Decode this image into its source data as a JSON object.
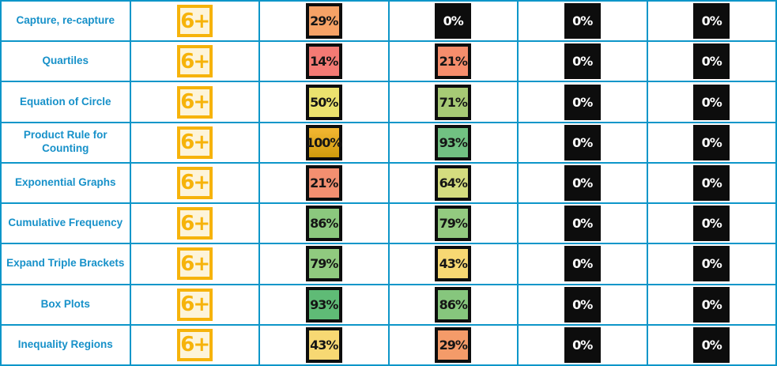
{
  "colors": {
    "grid_border": "#0d96c9",
    "topic_cell_bg": "#d7ebf5",
    "topic_text": "#1791c9",
    "grade_badge_border": "#f6b30b",
    "grade_badge_bg": "#fdf4da",
    "badge_border": "#0d0d0d",
    "zero_badge_bg": "#0d0d0d",
    "zero_badge_text": "#ffffff"
  },
  "rows": [
    {
      "topic": "Capture, re-capture",
      "grade": "6+",
      "scores": [
        {
          "value": "29%",
          "bg": "#f6a266",
          "fg": "#151515"
        },
        {
          "value": "0%",
          "bg": "#0d0d0d",
          "fg": "#ffffff"
        },
        {
          "value": "0%",
          "bg": "#0d0d0d",
          "fg": "#ffffff"
        },
        {
          "value": "0%",
          "bg": "#0d0d0d",
          "fg": "#ffffff"
        }
      ]
    },
    {
      "topic": "Quartiles",
      "grade": "6+",
      "scores": [
        {
          "value": "14%",
          "bg": "#f47a74",
          "fg": "#151515"
        },
        {
          "value": "21%",
          "bg": "#f68d6c",
          "fg": "#151515"
        },
        {
          "value": "0%",
          "bg": "#0d0d0d",
          "fg": "#ffffff"
        },
        {
          "value": "0%",
          "bg": "#0d0d0d",
          "fg": "#ffffff"
        }
      ]
    },
    {
      "topic": "Equation of Circle",
      "grade": "6+",
      "scores": [
        {
          "value": "50%",
          "bg": "#ebe26e",
          "fg": "#151515"
        },
        {
          "value": "71%",
          "bg": "#a7ca75",
          "fg": "#151515"
        },
        {
          "value": "0%",
          "bg": "#0d0d0d",
          "fg": "#ffffff"
        },
        {
          "value": "0%",
          "bg": "#0d0d0d",
          "fg": "#ffffff"
        }
      ]
    },
    {
      "topic": "Product Rule for Counting",
      "grade": "6+",
      "scores": [
        {
          "value": "100%",
          "bg": "linear-gradient(180deg,#f4b733,#cf9a0c)",
          "fg": "#151515"
        },
        {
          "value": "93%",
          "bg": "#71c182",
          "fg": "#151515"
        },
        {
          "value": "0%",
          "bg": "#0d0d0d",
          "fg": "#ffffff"
        },
        {
          "value": "0%",
          "bg": "#0d0d0d",
          "fg": "#ffffff"
        }
      ]
    },
    {
      "topic": "Exponential Graphs",
      "grade": "6+",
      "scores": [
        {
          "value": "21%",
          "bg": "#f38f70",
          "fg": "#151515"
        },
        {
          "value": "64%",
          "bg": "#d4dc7f",
          "fg": "#151515"
        },
        {
          "value": "0%",
          "bg": "#0d0d0d",
          "fg": "#ffffff"
        },
        {
          "value": "0%",
          "bg": "#0d0d0d",
          "fg": "#ffffff"
        }
      ]
    },
    {
      "topic": "Cumulative Frequency",
      "grade": "6+",
      "scores": [
        {
          "value": "86%",
          "bg": "#8bc87e",
          "fg": "#151515"
        },
        {
          "value": "79%",
          "bg": "#93ca80",
          "fg": "#151515"
        },
        {
          "value": "0%",
          "bg": "#0d0d0d",
          "fg": "#ffffff"
        },
        {
          "value": "0%",
          "bg": "#0d0d0d",
          "fg": "#ffffff"
        }
      ]
    },
    {
      "topic": "Expand Triple Brackets",
      "grade": "6+",
      "scores": [
        {
          "value": "79%",
          "bg": "#90ca7f",
          "fg": "#151515"
        },
        {
          "value": "43%",
          "bg": "#f7d873",
          "fg": "#151515"
        },
        {
          "value": "0%",
          "bg": "#0d0d0d",
          "fg": "#ffffff"
        },
        {
          "value": "0%",
          "bg": "#0d0d0d",
          "fg": "#ffffff"
        }
      ]
    },
    {
      "topic": "Box Plots",
      "grade": "6+",
      "scores": [
        {
          "value": "93%",
          "bg": "#5fbb76",
          "fg": "#151515"
        },
        {
          "value": "86%",
          "bg": "#86c67d",
          "fg": "#151515"
        },
        {
          "value": "0%",
          "bg": "#0d0d0d",
          "fg": "#ffffff"
        },
        {
          "value": "0%",
          "bg": "#0d0d0d",
          "fg": "#ffffff"
        }
      ]
    },
    {
      "topic": "Inequality Regions",
      "grade": "6+",
      "scores": [
        {
          "value": "43%",
          "bg": "#f7d873",
          "fg": "#151515"
        },
        {
          "value": "29%",
          "bg": "#f49b69",
          "fg": "#151515"
        },
        {
          "value": "0%",
          "bg": "#0d0d0d",
          "fg": "#ffffff"
        },
        {
          "value": "0%",
          "bg": "#0d0d0d",
          "fg": "#ffffff"
        }
      ]
    }
  ]
}
